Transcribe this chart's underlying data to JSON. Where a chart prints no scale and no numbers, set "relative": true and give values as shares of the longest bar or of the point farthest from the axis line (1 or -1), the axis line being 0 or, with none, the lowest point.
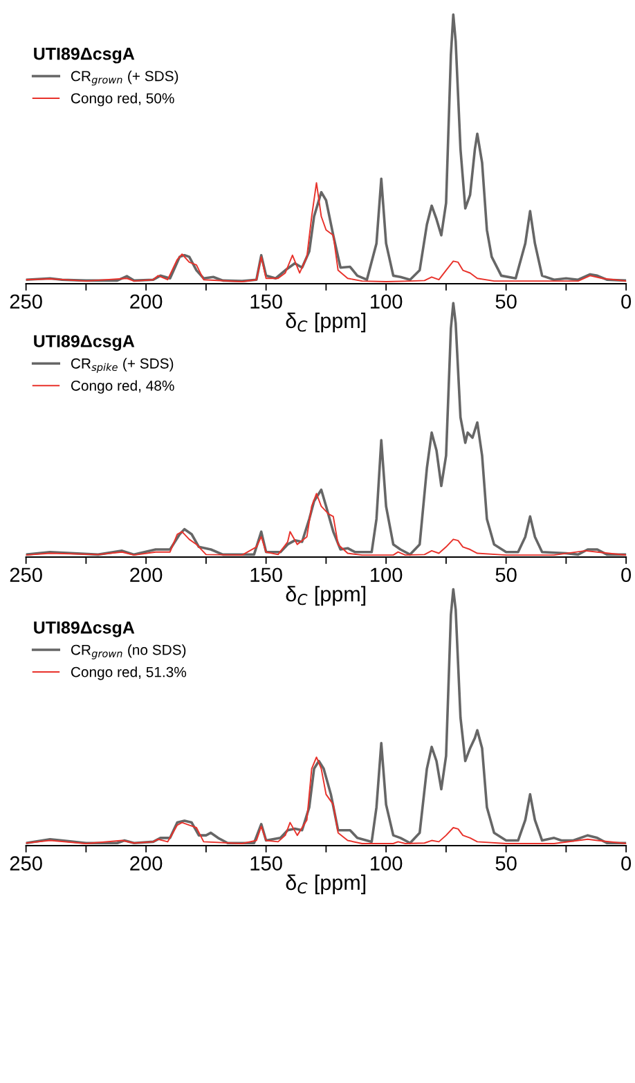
{
  "chart_data": [
    {
      "type": "line",
      "relative": true,
      "legend": "top left",
      "legend_title": "UTI89ΔcsgA",
      "xlabel": "δ$_{C}$ [ppm]",
      "xlim": [
        250,
        0
      ],
      "xticks": [
        250,
        {
          "value": 225,
          "label": null
        },
        200,
        {
          "value": 175,
          "label": null
        },
        150,
        {
          "value": 125,
          "label": null
        },
        100,
        {
          "value": 75,
          "label": null
        },
        50,
        {
          "value": 25,
          "label": null
        },
        0
      ],
      "grid": false,
      "marker": "none",
      "line_style": "solid",
      "series": [
        {
          "name": "CR$_{grown}$ (+ SDS)",
          "color": "#666666",
          "x": [
            250,
            240,
            235,
            225,
            212,
            208,
            205,
            197,
            194,
            190,
            186,
            184,
            182,
            179,
            176,
            172,
            168,
            160,
            154,
            152,
            150,
            146,
            142,
            138,
            135,
            132,
            130,
            127,
            125,
            122,
            119,
            115,
            112,
            108,
            104,
            102,
            100,
            97,
            94,
            90,
            86,
            83,
            81,
            79,
            77,
            75,
            73,
            72,
            71,
            69,
            67,
            65,
            63,
            62,
            60,
            58,
            56,
            52,
            46,
            42,
            40,
            38,
            35,
            30,
            25,
            20,
            15,
            12,
            8,
            0
          ],
          "values": [
            0.015,
            0.02,
            0.015,
            0.012,
            0.012,
            0.028,
            0.012,
            0.015,
            0.03,
            0.02,
            0.1,
            0.106,
            0.1,
            0.05,
            0.02,
            0.025,
            0.012,
            0.01,
            0.015,
            0.106,
            0.03,
            0.02,
            0.05,
            0.076,
            0.06,
            0.12,
            0.25,
            0.34,
            0.31,
            0.18,
            0.06,
            0.063,
            0.03,
            0.015,
            0.15,
            0.39,
            0.15,
            0.03,
            0.025,
            0.015,
            0.05,
            0.22,
            0.29,
            0.24,
            0.18,
            0.3,
            0.85,
            1.0,
            0.9,
            0.5,
            0.28,
            0.33,
            0.5,
            0.557,
            0.45,
            0.2,
            0.1,
            0.03,
            0.02,
            0.15,
            0.27,
            0.15,
            0.03,
            0.015,
            0.02,
            0.015,
            0.035,
            0.03,
            0.015,
            0.012
          ]
        },
        {
          "name": "Congo red, 50%",
          "color": "#e8312a",
          "x": [
            250,
            240,
            225,
            208,
            205,
            197,
            195,
            191,
            187,
            185,
            182,
            179,
            176,
            160,
            154,
            152,
            150,
            145,
            142,
            139,
            136,
            133,
            131,
            129,
            127,
            125,
            122,
            120,
            116,
            110,
            100,
            90,
            84,
            81,
            78,
            75,
            72,
            70,
            68,
            65,
            62,
            55,
            40,
            20,
            15,
            10,
            0
          ],
          "values": [
            0.015,
            0.018,
            0.01,
            0.02,
            0.01,
            0.015,
            0.03,
            0.015,
            0.09,
            0.11,
            0.08,
            0.07,
            0.015,
            0.008,
            0.015,
            0.1,
            0.02,
            0.02,
            0.04,
            0.106,
            0.04,
            0.1,
            0.25,
            0.375,
            0.25,
            0.2,
            0.18,
            0.05,
            0.02,
            0.01,
            0.008,
            0.01,
            0.012,
            0.025,
            0.015,
            0.05,
            0.084,
            0.08,
            0.05,
            0.04,
            0.02,
            0.01,
            0.01,
            0.01,
            0.03,
            0.02,
            0.01
          ]
        }
      ]
    },
    {
      "type": "line",
      "relative": true,
      "legend": "top left",
      "legend_title": "UTI89ΔcsgA",
      "xlabel": "δ$_{C}$ [ppm]",
      "xlim": [
        250,
        0
      ],
      "xticks": [
        250,
        {
          "value": 225,
          "label": null
        },
        200,
        {
          "value": 175,
          "label": null
        },
        150,
        {
          "value": 125,
          "label": null
        },
        100,
        {
          "value": 75,
          "label": null
        },
        50,
        {
          "value": 25,
          "label": null
        },
        0
      ],
      "grid": false,
      "marker": "none",
      "line_style": "solid",
      "series": [
        {
          "name": "CR$_{spike}$ (+ SDS)",
          "color": "#666666",
          "x": [
            250,
            240,
            230,
            220,
            210,
            205,
            196,
            190,
            186,
            184,
            181,
            178,
            173,
            168,
            155,
            152,
            150,
            144,
            141,
            138,
            135,
            132,
            130,
            127,
            125,
            122,
            119,
            116,
            113,
            106,
            104,
            102,
            100,
            97,
            94,
            90,
            86,
            83,
            81,
            79,
            77,
            75,
            73,
            72,
            71,
            69,
            67,
            66,
            64,
            62,
            60,
            58,
            55,
            50,
            45,
            42,
            40,
            38,
            35,
            25,
            20,
            16,
            12,
            8,
            0
          ],
          "values": [
            0.01,
            0.02,
            0.015,
            0.01,
            0.025,
            0.01,
            0.03,
            0.03,
            0.09,
            0.11,
            0.09,
            0.04,
            0.03,
            0.01,
            0.01,
            0.1,
            0.02,
            0.02,
            0.05,
            0.066,
            0.06,
            0.15,
            0.22,
            0.265,
            0.2,
            0.1,
            0.03,
            0.035,
            0.02,
            0.02,
            0.15,
            0.46,
            0.2,
            0.05,
            0.03,
            0.01,
            0.05,
            0.35,
            0.49,
            0.42,
            0.28,
            0.4,
            0.9,
            1.0,
            0.92,
            0.55,
            0.45,
            0.49,
            0.47,
            0.53,
            0.4,
            0.15,
            0.05,
            0.02,
            0.02,
            0.08,
            0.16,
            0.08,
            0.02,
            0.015,
            0.01,
            0.03,
            0.03,
            0.01,
            0.01
          ]
        },
        {
          "name": "Congo red, 48%",
          "color": "#e8312a",
          "x": [
            250,
            240,
            220,
            210,
            205,
            196,
            190,
            187,
            185,
            182,
            179,
            175,
            160,
            154,
            152,
            150,
            145,
            141,
            140,
            137,
            133,
            131,
            129,
            127,
            124,
            122,
            120,
            116,
            110,
            97,
            95,
            92,
            84,
            81,
            78,
            75,
            72,
            70,
            68,
            65,
            62,
            50,
            30,
            17,
            12,
            0
          ],
          "values": [
            0.008,
            0.015,
            0.01,
            0.02,
            0.008,
            0.02,
            0.02,
            0.09,
            0.1,
            0.07,
            0.05,
            0.01,
            0.008,
            0.04,
            0.08,
            0.02,
            0.01,
            0.06,
            0.1,
            0.05,
            0.08,
            0.2,
            0.25,
            0.2,
            0.17,
            0.16,
            0.05,
            0.015,
            0.008,
            0.008,
            0.02,
            0.008,
            0.01,
            0.025,
            0.015,
            0.04,
            0.07,
            0.065,
            0.04,
            0.03,
            0.015,
            0.008,
            0.008,
            0.025,
            0.02,
            0.008
          ]
        }
      ]
    },
    {
      "type": "line",
      "relative": true,
      "legend": "top left",
      "legend_title": "UTI89ΔcsgA",
      "xlabel": "δ$_{C}$ [ppm]",
      "xlim": [
        250,
        0
      ],
      "xticks": [
        250,
        {
          "value": 225,
          "label": null
        },
        200,
        {
          "value": 175,
          "label": null
        },
        150,
        {
          "value": 125,
          "label": null
        },
        100,
        {
          "value": 75,
          "label": null
        },
        50,
        {
          "value": 25,
          "label": null
        },
        0
      ],
      "grid": false,
      "marker": "none",
      "line_style": "solid",
      "series": [
        {
          "name": "CR$_{grown}$ (no SDS)",
          "color": "#666666",
          "x": [
            250,
            240,
            235,
            225,
            212,
            209,
            205,
            197,
            194,
            190,
            187,
            184,
            181,
            178,
            175,
            173,
            170,
            166,
            155,
            152,
            150,
            144,
            141,
            138,
            135,
            132,
            130,
            128,
            126,
            123,
            120,
            115,
            112,
            106,
            104,
            102,
            100,
            97,
            94,
            90,
            86,
            83,
            81,
            79,
            77,
            75,
            73,
            72,
            71,
            69,
            67,
            65,
            63,
            62,
            60,
            58,
            55,
            50,
            45,
            42,
            40,
            38,
            35,
            30,
            27,
            22,
            16,
            12,
            8,
            0
          ],
          "values": [
            0.01,
            0.025,
            0.02,
            0.01,
            0.01,
            0.02,
            0.01,
            0.015,
            0.03,
            0.03,
            0.09,
            0.097,
            0.09,
            0.04,
            0.04,
            0.05,
            0.03,
            0.01,
            0.01,
            0.084,
            0.02,
            0.03,
            0.06,
            0.066,
            0.06,
            0.15,
            0.3,
            0.33,
            0.3,
            0.2,
            0.06,
            0.06,
            0.03,
            0.015,
            0.15,
            0.4,
            0.16,
            0.04,
            0.03,
            0.01,
            0.05,
            0.3,
            0.385,
            0.33,
            0.22,
            0.35,
            0.9,
            1.0,
            0.92,
            0.5,
            0.33,
            0.38,
            0.42,
            0.45,
            0.38,
            0.15,
            0.05,
            0.02,
            0.02,
            0.1,
            0.2,
            0.1,
            0.02,
            0.03,
            0.02,
            0.02,
            0.04,
            0.03,
            0.01,
            0.01
          ]
        },
        {
          "name": "Congo red, 51.3%",
          "color": "#e8312a",
          "x": [
            250,
            240,
            225,
            210,
            205,
            197,
            195,
            191,
            187,
            185,
            182,
            179,
            176,
            160,
            154,
            152,
            150,
            145,
            142,
            140,
            137,
            133,
            131,
            129,
            127,
            125,
            122,
            120,
            116,
            110,
            97,
            95,
            92,
            84,
            81,
            78,
            75,
            72,
            70,
            68,
            65,
            62,
            50,
            30,
            16,
            12,
            0
          ],
          "values": [
            0.01,
            0.02,
            0.008,
            0.02,
            0.01,
            0.015,
            0.025,
            0.015,
            0.08,
            0.09,
            0.08,
            0.07,
            0.015,
            0.008,
            0.02,
            0.075,
            0.02,
            0.015,
            0.04,
            0.09,
            0.04,
            0.1,
            0.3,
            0.345,
            0.3,
            0.2,
            0.16,
            0.05,
            0.02,
            0.008,
            0.008,
            0.015,
            0.008,
            0.01,
            0.02,
            0.015,
            0.04,
            0.07,
            0.065,
            0.04,
            0.03,
            0.015,
            0.008,
            0.008,
            0.025,
            0.02,
            0.008
          ]
        }
      ]
    }
  ]
}
